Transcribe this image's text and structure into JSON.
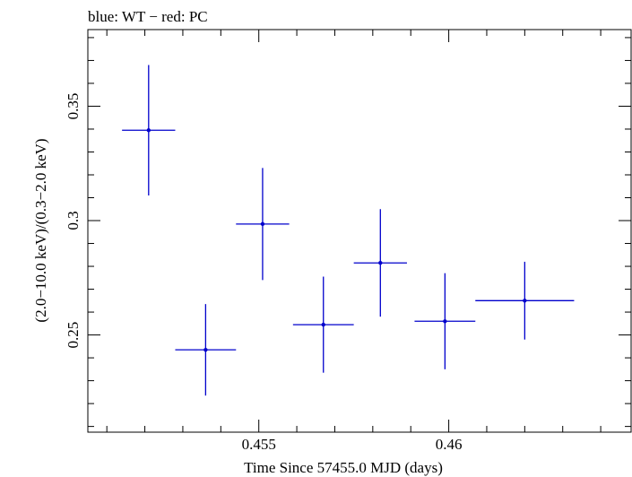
{
  "chart_data": {
    "type": "scatter",
    "title": "blue: WT − red: PC",
    "xlabel": "Time Since 57455.0 MJD (days)",
    "ylabel": "(2.0−10.0 keV)/(0.3−2.0 keV)",
    "xlim": [
      0.4505,
      0.4648
    ],
    "ylim": [
      0.2075,
      0.3835
    ],
    "x_ticks": [
      0.455,
      0.46
    ],
    "x_tick_labels": [
      "0.455",
      "0.46"
    ],
    "y_ticks": [
      0.25,
      0.3,
      0.35
    ],
    "y_tick_labels": [
      "0.25",
      "0.3",
      "0.35"
    ],
    "grid": false,
    "series": [
      {
        "color": "#0000cc",
        "points": [
          {
            "x": 0.4521,
            "xerr": 0.0007,
            "y": 0.3395,
            "yerr": 0.0285
          },
          {
            "x": 0.4536,
            "xerr": 0.0008,
            "y": 0.2435,
            "yerr": 0.02
          },
          {
            "x": 0.4551,
            "xerr": 0.0007,
            "y": 0.2985,
            "yerr": 0.0245
          },
          {
            "x": 0.4567,
            "xerr": 0.0008,
            "y": 0.2545,
            "yerr": 0.021
          },
          {
            "x": 0.4582,
            "xerr": 0.0007,
            "y": 0.2815,
            "yerr": 0.0235
          },
          {
            "x": 0.4599,
            "xerr": 0.0008,
            "y": 0.256,
            "yerr": 0.021
          },
          {
            "x": 0.462,
            "xerr": 0.0013,
            "y": 0.265,
            "yerr": 0.017
          }
        ]
      }
    ]
  }
}
